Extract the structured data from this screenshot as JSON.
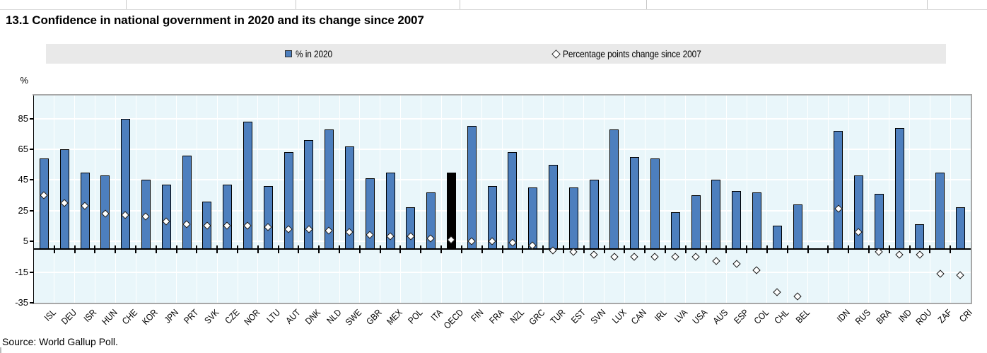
{
  "title": "13.1 Confidence in national government in 2020 and its change since 2007",
  "source_note": "Source: World Gallup Poll.",
  "legend": {
    "series1_label": "% in 2020",
    "series2_label": "Percentage points change since 2007"
  },
  "y_axis": {
    "unit": "%",
    "tick_labels": [
      85,
      65,
      45,
      25,
      5,
      -15,
      -35
    ],
    "gridlines": [
      85,
      65,
      45,
      25,
      5,
      -15
    ]
  },
  "colors": {
    "bar_fill": "#4d7fbe",
    "bar_border": "#000000",
    "highlight_bar_fill": "#000000",
    "diamond_fill": "#ffffff",
    "diamond_border": "#111111",
    "plot_background": "#e9f6fa",
    "gridline": "#ffffff",
    "legend_background": "#e9e9e9",
    "axis_line": "#000000",
    "plot_border": "#a8a8a8"
  },
  "chart_data": {
    "type": "bar",
    "title": "13.1 Confidence in national government in 2020 and its change since 2007",
    "ylabel": "%",
    "ylim": [
      -35,
      100
    ],
    "grid": true,
    "legend_position": "top",
    "categories": [
      "ISL",
      "DEU",
      "ISR",
      "HUN",
      "CHE",
      "KOR",
      "JPN",
      "PRT",
      "SVK",
      "CZE",
      "NOR",
      "LTU",
      "AUT",
      "DNK",
      "NLD",
      "SWE",
      "GBR",
      "MEX",
      "POL",
      "ITA",
      "OECD",
      "FIN",
      "FRA",
      "NZL",
      "GRC",
      "TUR",
      "EST",
      "SVN",
      "LUX",
      "CAN",
      "IRL",
      "LVA",
      "USA",
      "AUS",
      "ESP",
      "COL",
      "CHL",
      "BEL",
      "IDN",
      "RUS",
      "BRA",
      "IND",
      "ROU",
      "ZAF",
      "CRI"
    ],
    "series": [
      {
        "name": "% in 2020",
        "type": "bar",
        "values": [
          59,
          65,
          50,
          48,
          85,
          45,
          42,
          61,
          31,
          42,
          83,
          41,
          63,
          71,
          78,
          67,
          46,
          50,
          27,
          37,
          50,
          80,
          41,
          63,
          40,
          55,
          40,
          45,
          78,
          60,
          59,
          24,
          35,
          45,
          38,
          37,
          15,
          29,
          77,
          48,
          36,
          79,
          16,
          50,
          27
        ]
      },
      {
        "name": "Percentage points change since 2007",
        "type": "diamond-marker",
        "values": [
          35,
          30,
          28,
          23,
          22,
          21,
          18,
          16,
          15,
          15,
          15,
          14,
          13,
          13,
          12,
          11,
          9,
          8,
          8,
          7,
          6,
          5,
          5,
          4,
          2,
          -1,
          -2,
          -4,
          -5,
          -5,
          -5,
          -5,
          -5,
          -8,
          -10,
          -14,
          -28,
          -31,
          26,
          11,
          -2,
          -4,
          -4,
          -16,
          -17
        ]
      }
    ],
    "highlight_category": "OECD",
    "gap_after_category": "BEL"
  }
}
